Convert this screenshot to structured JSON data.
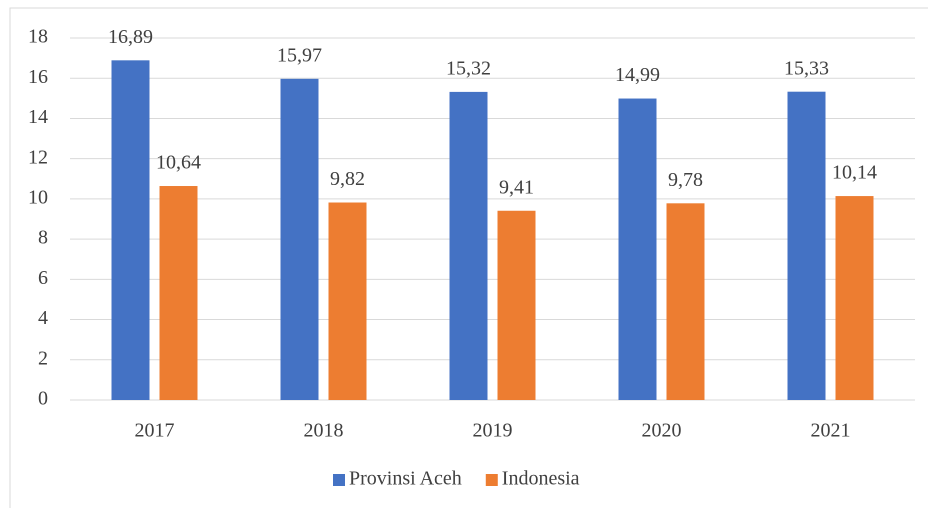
{
  "chart_data": {
    "type": "bar",
    "categories": [
      "2017",
      "2018",
      "2019",
      "2020",
      "2021"
    ],
    "series": [
      {
        "name": "Provinsi Aceh",
        "color": "#4472c4",
        "values": [
          16.89,
          15.97,
          15.32,
          14.99,
          15.33
        ],
        "value_labels": [
          "16,89",
          "15,97",
          "15,32",
          "14,99",
          "15,33"
        ]
      },
      {
        "name": "Indonesia",
        "color": "#ed7d31",
        "values": [
          10.64,
          9.82,
          9.41,
          9.78,
          10.14
        ],
        "value_labels": [
          "10,64",
          "9,82",
          "9,41",
          "9,78",
          "10,14"
        ]
      }
    ],
    "ylim": [
      0,
      18
    ],
    "yticks": [
      0,
      2,
      4,
      6,
      8,
      10,
      12,
      14,
      16,
      18
    ],
    "grid": true,
    "legend": "bottom"
  }
}
